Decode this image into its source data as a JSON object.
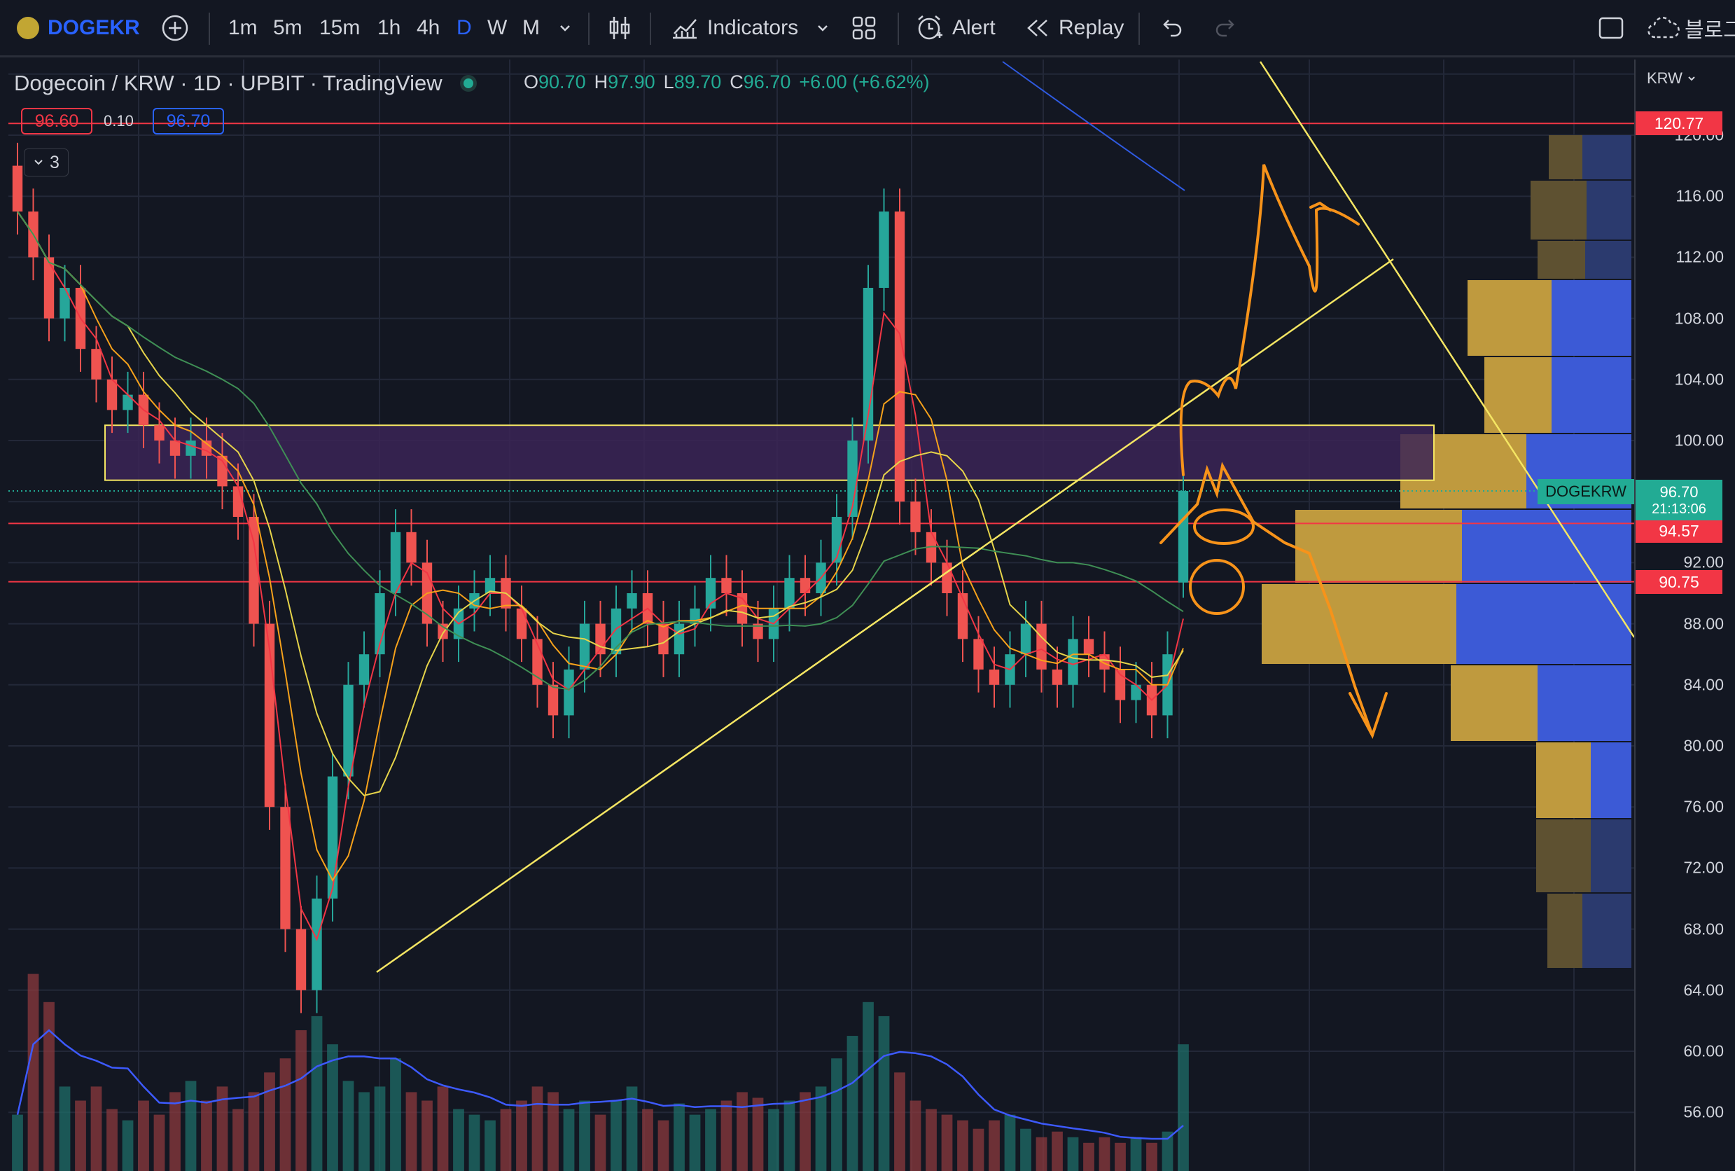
{
  "toolbar": {
    "symbol": "DOGEKR",
    "intervals": [
      "1m",
      "5m",
      "15m",
      "1h",
      "4h",
      "D",
      "W",
      "M"
    ],
    "active_interval": "D",
    "indicators_label": "Indicators",
    "alert_label": "Alert",
    "replay_label": "Replay",
    "right_text": "블로그"
  },
  "legend": {
    "title": "Dogecoin / KRW · 1D · UPBIT · TradingView",
    "o_label": "O",
    "o": "90.70",
    "h_label": "H",
    "h": "97.90",
    "l_label": "L",
    "l": "89.70",
    "c_label": "C",
    "c": "96.70",
    "change": "+6.00 (+6.62%)",
    "sell": "96.60",
    "spread": "0.10",
    "buy": "96.70",
    "collapse_count": "3"
  },
  "axis": {
    "currency": "KRW",
    "ticks": [
      "120.00",
      "116.00",
      "112.00",
      "108.00",
      "104.00",
      "100.00",
      "92.00",
      "88.00",
      "84.00",
      "80.00",
      "76.00",
      "72.00",
      "68.00",
      "64.00",
      "60.00",
      "56.00"
    ],
    "price_labels": {
      "top_line": "120.77",
      "line_1": "94.57",
      "line_2": "90.75",
      "current": "96.70",
      "countdown": "21:13:06",
      "symbol_tag": "DOGEKRW"
    }
  },
  "colors": {
    "background": "#131722",
    "up": "#26a69a",
    "down": "#ef5350",
    "accent": "#2962ff",
    "drawing": "#f7931a",
    "trendline": "#f5e663",
    "zone": "#3b2456"
  },
  "chart_data": {
    "type": "candlestick",
    "symbol": "Dogecoin / KRW",
    "interval": "1D",
    "exchange": "UPBIT",
    "y_range": [
      54,
      124
    ],
    "last": {
      "open": 90.7,
      "high": 97.9,
      "low": 89.7,
      "close": 96.7,
      "change": 6.0,
      "change_pct": 6.62
    },
    "horizontal_lines": [
      120.77,
      94.57,
      90.75
    ],
    "zone": [
      97.4,
      101.0
    ],
    "closes": [
      115,
      112,
      108,
      110,
      106,
      104,
      102,
      103,
      101,
      100,
      99,
      100,
      99,
      97,
      95,
      88,
      76,
      68,
      64,
      70,
      78,
      84,
      86,
      90,
      94,
      92,
      88,
      87,
      89,
      90,
      91,
      89,
      87,
      84,
      82,
      85,
      88,
      86,
      89,
      90,
      88,
      86,
      88,
      89,
      91,
      90,
      88,
      87,
      89,
      91,
      90,
      92,
      95,
      100,
      110,
      115,
      96,
      94,
      92,
      90,
      87,
      85,
      84,
      86,
      88,
      85,
      84,
      87,
      86,
      85,
      83,
      84,
      82,
      86,
      97
    ],
    "volume_range": [
      0,
      100
    ],
    "volumes": [
      20,
      70,
      60,
      30,
      25,
      30,
      22,
      18,
      25,
      20,
      28,
      32,
      25,
      30,
      22,
      28,
      35,
      40,
      50,
      55,
      45,
      32,
      28,
      30,
      40,
      28,
      25,
      30,
      22,
      20,
      18,
      22,
      25,
      30,
      28,
      22,
      25,
      20,
      25,
      30,
      22,
      18,
      24,
      20,
      22,
      25,
      28,
      26,
      22,
      25,
      28,
      30,
      40,
      48,
      60,
      55,
      35,
      25,
      22,
      20,
      18,
      15,
      18,
      20,
      15,
      12,
      14,
      12,
      10,
      12,
      10,
      12,
      10,
      14,
      45
    ]
  }
}
